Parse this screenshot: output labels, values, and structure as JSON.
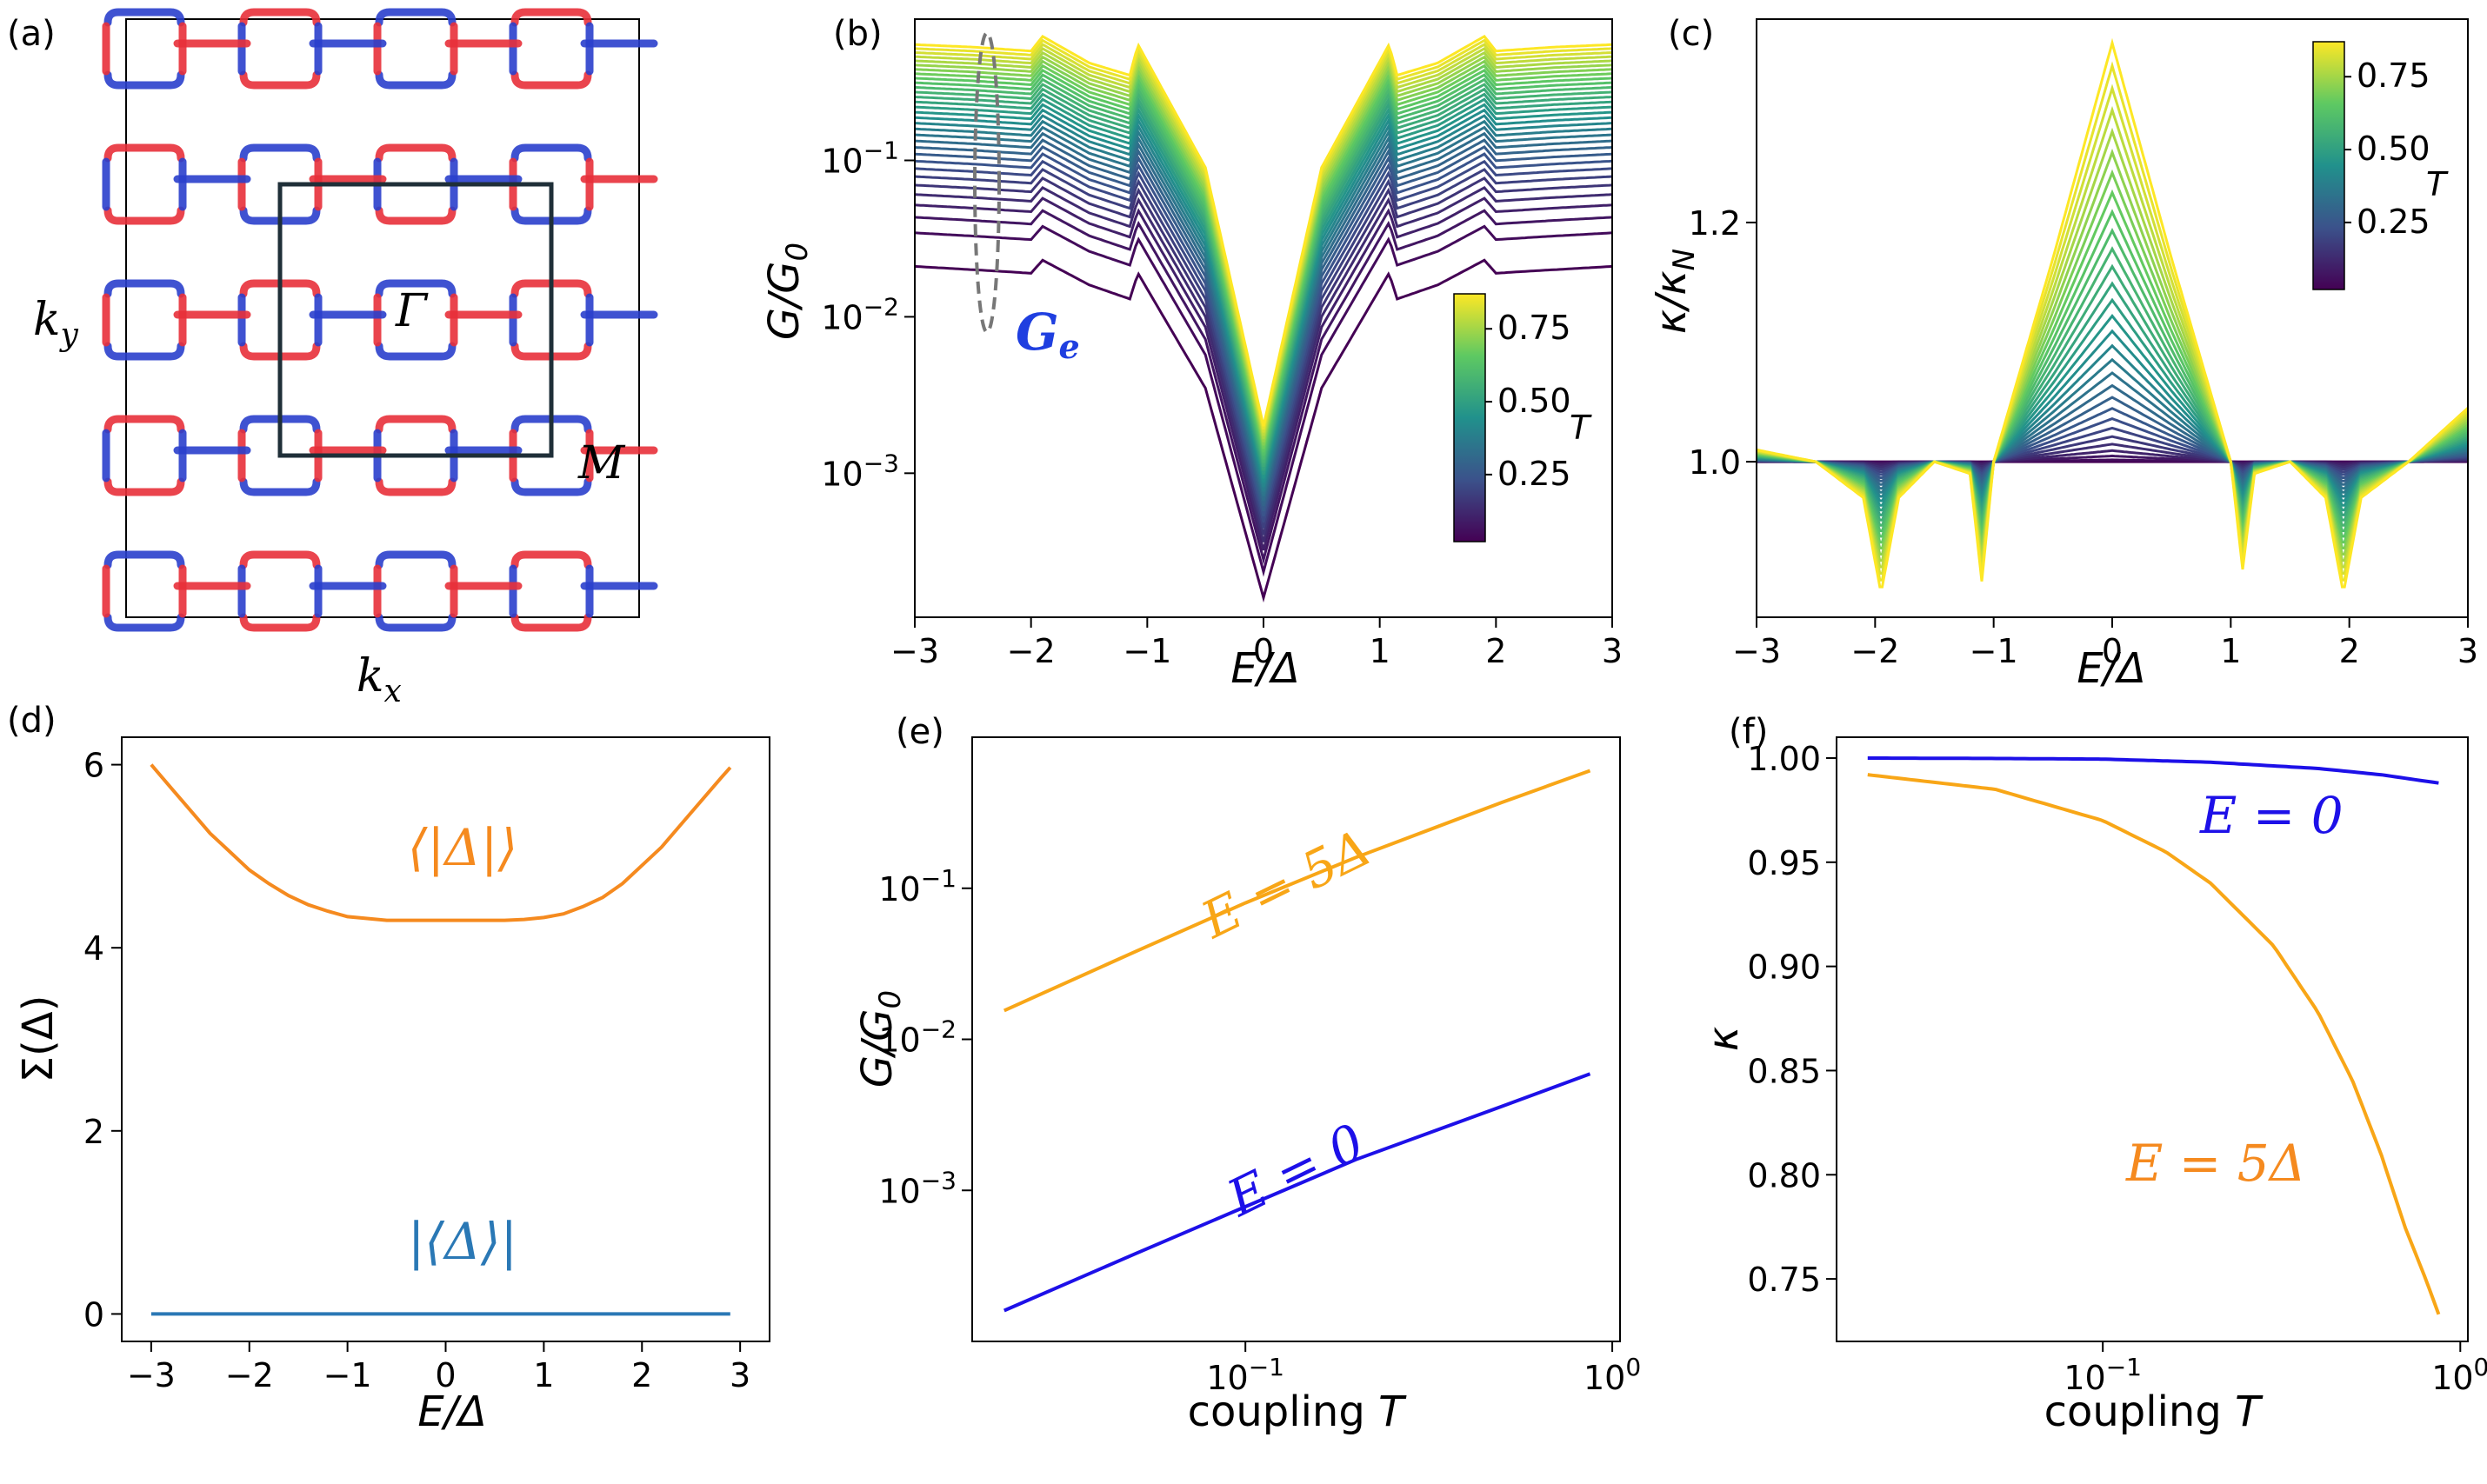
{
  "chart_data": [
    {
      "id": "a",
      "type": "heatmap",
      "panel_label": "(a)",
      "xlabel": "k_x",
      "ylabel": "k_y",
      "point_labels": [
        "Γ",
        "M"
      ],
      "colors": {
        "positive": "#e8303a",
        "negative": "#2a3fcc",
        "bz_box": "#1f2f38"
      }
    },
    {
      "id": "b",
      "type": "line",
      "panel_label": "(b)",
      "xlabel": "E/Δ",
      "ylabel": "G/G_0",
      "xlim": [
        -3,
        3
      ],
      "ylim": [
        0.00012,
        0.8
      ],
      "yscale": "log",
      "xticks": [
        -3,
        -2,
        -1,
        0,
        1,
        2,
        3
      ],
      "yticks": [
        {
          "value": 0.001,
          "label": "10^-3"
        },
        {
          "value": 0.01,
          "label": "10^-2"
        },
        {
          "value": 0.1,
          "label": "10^-1"
        }
      ],
      "curve_count": 32,
      "colorbar": {
        "label": "T",
        "range": [
          0.02,
          0.87
        ],
        "ticks": [
          "0.25",
          "0.50",
          "0.75"
        ],
        "tick_values": [
          0.25,
          0.5,
          0.75
        ],
        "colormap": "viridis"
      },
      "annotation": {
        "text": "G_e",
        "color": "#1f3fe0"
      },
      "series": [
        {
          "T": 0.02,
          "E": [
            -3,
            -2.5,
            -2,
            -1.9,
            -1.5,
            -1.15,
            -1.08,
            -0.5,
            0,
            0.5,
            1.08,
            1.15,
            1.5,
            1.9,
            2,
            2.5,
            3
          ],
          "G": [
            0.021,
            0.02,
            0.019,
            0.023,
            0.016,
            0.013,
            0.019,
            0.0035,
            0.00016,
            0.0035,
            0.019,
            0.013,
            0.016,
            0.023,
            0.019,
            0.02,
            0.021
          ]
        },
        {
          "T": 0.87,
          "E": [
            -3,
            -2.5,
            -2,
            -1.9,
            -1.5,
            -1.15,
            -1.08,
            -0.5,
            0,
            0.5,
            1.08,
            1.15,
            1.5,
            1.9,
            2,
            2.5,
            3
          ],
          "G": [
            0.55,
            0.53,
            0.5,
            0.62,
            0.42,
            0.35,
            0.55,
            0.09,
            0.002,
            0.09,
            0.55,
            0.35,
            0.42,
            0.62,
            0.5,
            0.53,
            0.55
          ]
        }
      ]
    },
    {
      "id": "c",
      "type": "line",
      "panel_label": "(c)",
      "xlabel": "E/Δ",
      "ylabel": "κ/κ_N",
      "xlim": [
        -3,
        3
      ],
      "ylim": [
        0.87,
        1.37
      ],
      "xticks": [
        -3,
        -2,
        -1,
        0,
        1,
        2,
        3
      ],
      "yticks": [
        1.0,
        1.2
      ],
      "curve_count": 30,
      "colorbar": {
        "label": "T",
        "range": [
          0.02,
          0.87
        ],
        "ticks": [
          "0.25",
          "0.50",
          "0.75"
        ],
        "tick_values": [
          0.25,
          0.5,
          0.75
        ],
        "colormap": "viridis"
      },
      "series": [
        {
          "T": 0.87,
          "E": [
            -3,
            -2.5,
            -2.1,
            -1.95,
            -1.8,
            -1.5,
            -1.2,
            -1.1,
            -1.0,
            -0.5,
            0,
            0.5,
            1.0,
            1.1,
            1.2,
            1.5,
            1.8,
            1.95,
            2.1,
            2.5,
            3
          ],
          "kappa": [
            1.01,
            1.0,
            0.97,
            0.89,
            0.97,
            1.0,
            0.99,
            0.9,
            1.0,
            1.17,
            1.35,
            1.17,
            1.0,
            0.91,
            0.99,
            1.0,
            0.97,
            0.89,
            0.97,
            1.0,
            1.045
          ]
        }
      ]
    },
    {
      "id": "d",
      "type": "line",
      "panel_label": "(d)",
      "xlabel": "E/Δ",
      "ylabel": "Σ(Δ)",
      "xlim": [
        -3.3,
        3.3
      ],
      "ylim": [
        -0.3,
        6.3
      ],
      "xticks": [
        -3,
        -2,
        -1,
        0,
        1,
        2,
        3
      ],
      "yticks": [
        0,
        2,
        4,
        6
      ],
      "series": [
        {
          "name": "⟨|Δ|⟩",
          "color": "#f58a1f",
          "x": [
            -3,
            -2.8,
            -2.6,
            -2.4,
            -2.2,
            -2,
            -1.8,
            -1.6,
            -1.4,
            -1.2,
            -1,
            -0.8,
            -0.6,
            -0.4,
            0,
            0.4,
            0.6,
            0.8,
            1,
            1.2,
            1.4,
            1.6,
            1.8,
            2,
            2.2,
            2.4,
            2.6,
            2.8,
            2.9
          ],
          "y": [
            6.0,
            5.75,
            5.5,
            5.25,
            5.05,
            4.85,
            4.7,
            4.57,
            4.47,
            4.4,
            4.34,
            4.32,
            4.3,
            4.3,
            4.3,
            4.3,
            4.3,
            4.31,
            4.33,
            4.37,
            4.45,
            4.55,
            4.7,
            4.9,
            5.1,
            5.35,
            5.6,
            5.85,
            5.97
          ]
        },
        {
          "name": "|⟨Δ⟩|",
          "color": "#2a78b5",
          "x": [
            -3,
            2.9
          ],
          "y": [
            0.0,
            0.0
          ]
        }
      ]
    },
    {
      "id": "e",
      "type": "line",
      "panel_label": "(e)",
      "xlabel": "coupling T",
      "ylabel": "G/G_0",
      "xscale": "log",
      "yscale": "log",
      "xlim": [
        0.018,
        1.05
      ],
      "ylim": [
        0.0001,
        1.0
      ],
      "xticks": [
        {
          "value": 0.1,
          "label": "10^-1"
        },
        {
          "value": 1,
          "label": "10^0"
        }
      ],
      "yticks": [
        {
          "value": 0.001,
          "label": "10^-3"
        },
        {
          "value": 0.01,
          "label": "10^-2"
        },
        {
          "value": 0.1,
          "label": "10^-1"
        }
      ],
      "series": [
        {
          "name": "E = 5Δ",
          "color": "#f8a617",
          "x": [
            0.022,
            0.05,
            0.1,
            0.2,
            0.5,
            0.87
          ],
          "y": [
            0.0155,
            0.038,
            0.08,
            0.16,
            0.37,
            0.6
          ]
        },
        {
          "name": "E = 0",
          "color": "#1d10e8",
          "x": [
            0.022,
            0.05,
            0.1,
            0.2,
            0.5,
            0.87
          ],
          "y": [
            0.00016,
            0.00038,
            0.00078,
            0.0016,
            0.0036,
            0.0059
          ]
        }
      ]
    },
    {
      "id": "f",
      "type": "line",
      "panel_label": "(f)",
      "xlabel": "coupling T",
      "ylabel": "κ",
      "xscale": "log",
      "xlim": [
        0.018,
        1.05
      ],
      "ylim": [
        0.72,
        1.01
      ],
      "xticks": [
        {
          "value": 0.1,
          "label": "10^-1"
        },
        {
          "value": 1,
          "label": "10^0"
        }
      ],
      "yticks": [
        "0.75",
        "0.80",
        "0.85",
        "0.90",
        "0.95",
        "1.00"
      ],
      "ytick_values": [
        0.75,
        0.8,
        0.85,
        0.9,
        0.95,
        1.0
      ],
      "series": [
        {
          "name": "E = 0",
          "color": "#1d10e8",
          "x": [
            0.022,
            0.05,
            0.1,
            0.2,
            0.4,
            0.6,
            0.87
          ],
          "y": [
            1.0,
            0.9998,
            0.9995,
            0.998,
            0.995,
            0.992,
            0.988
          ]
        },
        {
          "name": "E = 5Δ",
          "color": "#f8a617",
          "x": [
            0.022,
            0.05,
            0.1,
            0.15,
            0.2,
            0.3,
            0.4,
            0.5,
            0.6,
            0.7,
            0.8,
            0.87
          ],
          "y": [
            0.992,
            0.985,
            0.97,
            0.955,
            0.94,
            0.91,
            0.878,
            0.845,
            0.81,
            0.775,
            0.75,
            0.733
          ]
        }
      ]
    }
  ]
}
